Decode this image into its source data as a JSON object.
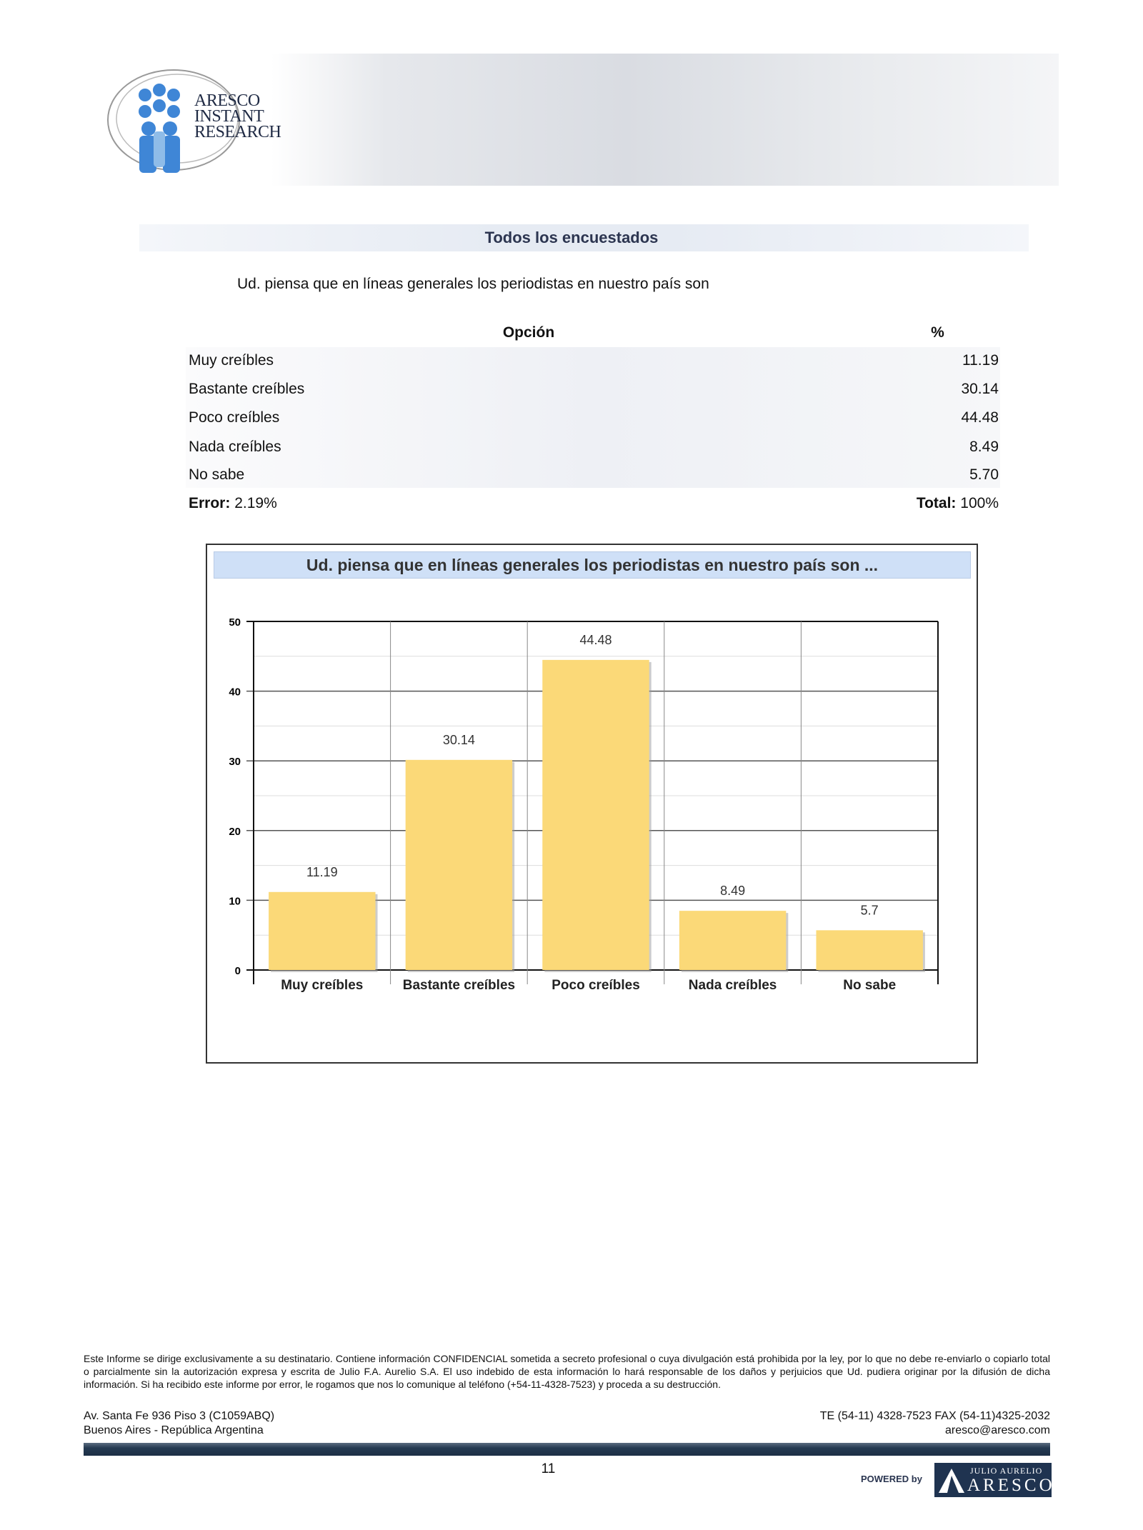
{
  "header": {
    "logo_text": [
      "ARESCO",
      "INSTANT",
      "RESEARCH"
    ]
  },
  "section_title": "Todos los encuestados",
  "question": "Ud. piensa que en líneas generales los periodistas en nuestro país son",
  "table": {
    "headers": {
      "option": "Opción",
      "percent": "%"
    },
    "rows": [
      {
        "label": "Muy creíbles",
        "value": "11.19"
      },
      {
        "label": "Bastante creíbles",
        "value": "30.14"
      },
      {
        "label": "Poco creíbles",
        "value": "44.48"
      },
      {
        "label": "Nada creíbles",
        "value": "8.49"
      },
      {
        "label": "No sabe",
        "value": "5.70"
      }
    ],
    "error_label": "Error:",
    "error_value": "2.19%",
    "total_label": "Total:",
    "total_value": "100%"
  },
  "chart_data": {
    "type": "bar",
    "title": "Ud. piensa que en líneas generales los periodistas en nuestro país son ...",
    "categories": [
      "Muy creíbles",
      "Bastante creíbles",
      "Poco creíbles",
      "Nada creíbles",
      "No sabe"
    ],
    "values": [
      11.19,
      30.14,
      44.48,
      8.49,
      5.7
    ],
    "data_labels": [
      "11.19",
      "30.14",
      "44.48",
      "8.49",
      "5.7"
    ],
    "ylim": [
      0,
      50
    ],
    "yticks": [
      0,
      10,
      20,
      30,
      40,
      50
    ],
    "grid": true,
    "bar_color": "#fbd978"
  },
  "footer": {
    "disclaimer": "Este Informe se dirige exclusivamente a su destinatario.  Contiene información CONFIDENCIAL sometida a secreto profesional o cuya divulgación está prohibida por la ley, por lo que no debe re-enviarlo o copiarlo total o parcialmente sin la autorización expresa y escrita de  Julio F.A.  Aurelio S.A.  El uso indebido de esta información lo hará responsable de los daños y  perjuicios que Ud. pudiera  originar por  la difusión  de dicha información.  Si ha recibido este informe por error,  le rogamos que nos lo comunique  al teléfono  (+54-11-4328-7523)  y proceda a su destrucción.",
    "address_line1": "Av. Santa Fe 936  Piso 3 (C1059ABQ)",
    "address_line2": "Buenos Aires - República Argentina",
    "phone": "TE (54-11) 4328-7523  FAX (54-11)4325-2032",
    "email": "aresco@aresco.com",
    "page_number": "11",
    "powered_by": "POWERED by",
    "brand_top": "JULIO AURELIO",
    "brand_name": "ARESCO"
  }
}
